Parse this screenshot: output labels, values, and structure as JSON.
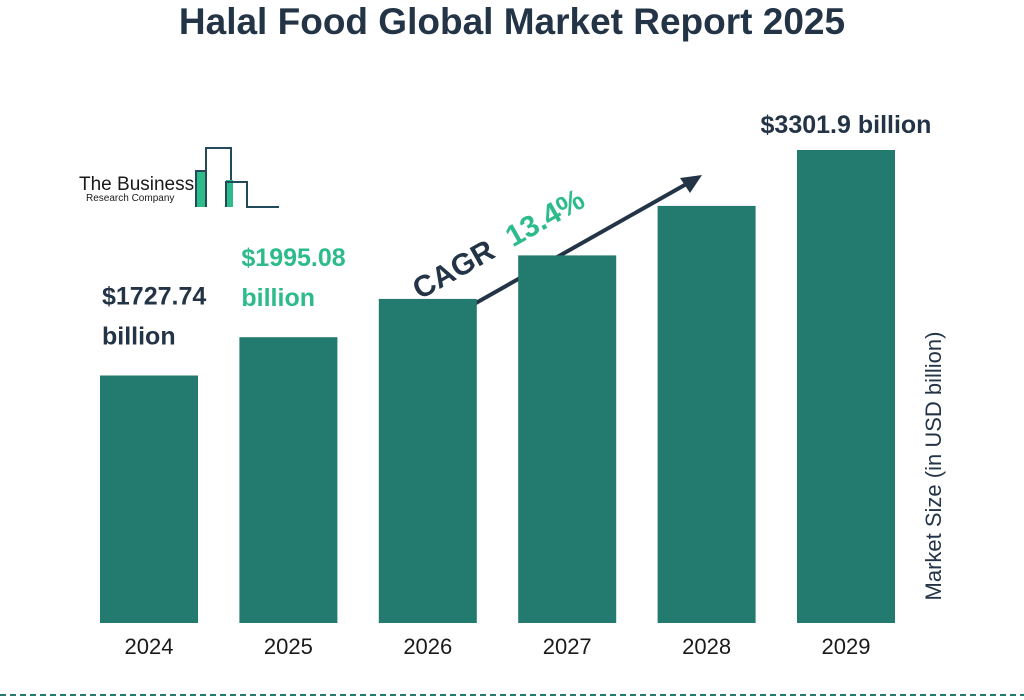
{
  "title": "Halal Food Global Market Report 2025",
  "logo": {
    "line1": "The Business",
    "line2": "Research Company",
    "accent": "#2dbb8a",
    "stroke": "#234a5a"
  },
  "colors": {
    "bar": "#227b6e",
    "dark": "#243447",
    "accent_green": "#2dbb8a",
    "dashed_border": "#227b6e"
  },
  "cagr": {
    "label": "CAGR",
    "value": "13.4%"
  },
  "chart_data": {
    "type": "bar",
    "title": "Halal Food Global Market Report 2025",
    "categories": [
      "2024",
      "2025",
      "2026",
      "2027",
      "2028",
      "2029"
    ],
    "values": [
      1727.74,
      1995.08,
      2262.6,
      2565.8,
      2911.5,
      3301.9
    ],
    "ylabel": "Market Size (in USD billion)",
    "xlabel": "",
    "annotations": [
      {
        "index": 0,
        "line1": "$1727.74",
        "line2": "billion",
        "color": "#243447"
      },
      {
        "index": 1,
        "line1": "$1995.08",
        "line2": "billion",
        "color": "#2dbb8a"
      },
      {
        "index": 5,
        "line1": "$3301.9 billion",
        "line2": "",
        "color": "#243447"
      }
    ],
    "grid": false
  }
}
